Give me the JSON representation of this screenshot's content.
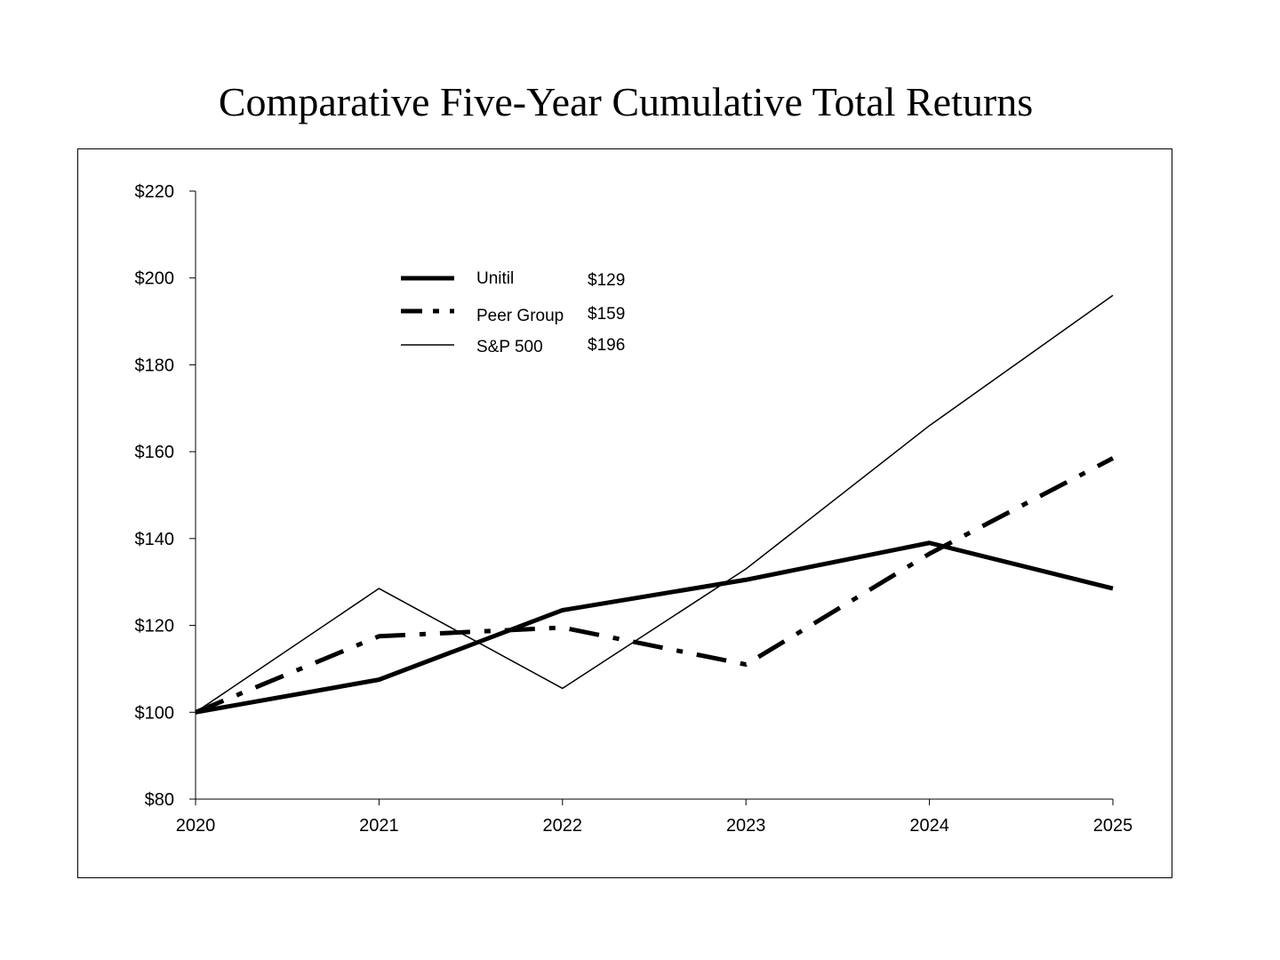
{
  "chart_data": {
    "type": "line",
    "title": "Comparative Five-Year Cumulative Total Returns",
    "xlabel": "",
    "ylabel": "",
    "x": [
      "2020",
      "2021",
      "2022",
      "2023",
      "2024",
      "2025"
    ],
    "ylim": [
      80,
      220
    ],
    "y_ticks": [
      "$80",
      "$100",
      "$120",
      "$140",
      "$160",
      "$180",
      "$200",
      "$220"
    ],
    "y_tick_values": [
      80,
      100,
      120,
      140,
      160,
      180,
      200,
      220
    ],
    "grid": false,
    "legend_position": "top-center",
    "series": [
      {
        "name": "Unitil",
        "end_label": "$129",
        "style": "thick-solid",
        "values": [
          100,
          107.5,
          123.5,
          130.5,
          139,
          128.5
        ]
      },
      {
        "name": "Peer Group",
        "end_label": "$159",
        "style": "dash-dot",
        "values": [
          100,
          117.5,
          119.5,
          111,
          136.5,
          158.5
        ]
      },
      {
        "name": "S&P 500",
        "end_label": "$196",
        "style": "thin-solid",
        "values": [
          100,
          128.5,
          105.5,
          133,
          166,
          196
        ]
      }
    ]
  }
}
